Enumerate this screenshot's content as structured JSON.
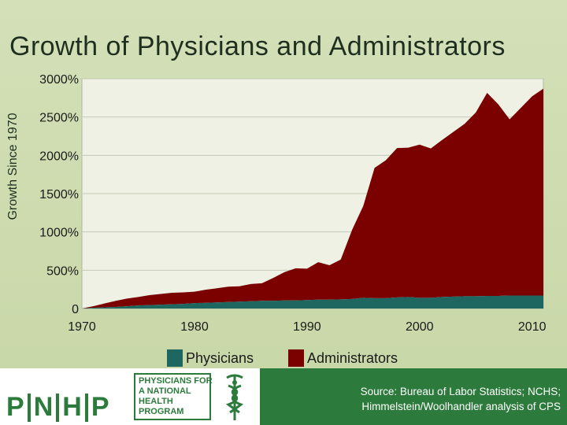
{
  "title": "Growth of Physicians and Administrators",
  "chart_data": {
    "type": "area",
    "title": "Growth of Physicians and Administrators",
    "xlabel": "",
    "ylabel": "Growth Since 1970",
    "xlim": [
      1970,
      2011
    ],
    "ylim": [
      0,
      3000
    ],
    "x_ticks": [
      "1970",
      "1980",
      "1990",
      "2000",
      "2010"
    ],
    "y_ticks": [
      "0",
      "500%",
      "1000%",
      "1500%",
      "2000%",
      "2500%",
      "3000%"
    ],
    "stacked": true,
    "x": [
      1970,
      1971,
      1972,
      1973,
      1974,
      1975,
      1976,
      1977,
      1978,
      1979,
      1980,
      1981,
      1982,
      1983,
      1984,
      1985,
      1986,
      1987,
      1988,
      1989,
      1990,
      1991,
      1992,
      1993,
      1994,
      1995,
      1996,
      1997,
      1998,
      1999,
      2000,
      2001,
      2002,
      2003,
      2004,
      2005,
      2006,
      2007,
      2008,
      2009,
      2010,
      2011
    ],
    "series": [
      {
        "name": "Physicians",
        "color": "#1e6660",
        "values": [
          0,
          10,
          15,
          20,
          30,
          40,
          45,
          50,
          55,
          60,
          70,
          75,
          80,
          85,
          90,
          95,
          100,
          100,
          105,
          105,
          110,
          115,
          115,
          120,
          125,
          140,
          135,
          135,
          145,
          150,
          140,
          140,
          150,
          155,
          160,
          160,
          165,
          165,
          170,
          170,
          170,
          170
        ]
      },
      {
        "name": "Administrators",
        "color": "#7b0000",
        "values": [
          0,
          20,
          50,
          80,
          100,
          110,
          130,
          140,
          150,
          150,
          150,
          170,
          185,
          200,
          200,
          225,
          230,
          300,
          370,
          420,
          410,
          490,
          450,
          520,
          900,
          1200,
          1700,
          1800,
          1950,
          1950,
          2000,
          1950,
          2050,
          2150,
          2250,
          2400,
          2650,
          2500,
          2300,
          2450,
          2600,
          2700
        ]
      }
    ],
    "legend_position": "bottom"
  },
  "legend": {
    "physicians": "Physicians",
    "administrators": "Administrators"
  },
  "footer": {
    "logo_letters": [
      "P",
      "N",
      "H",
      "P"
    ],
    "logo_lines": [
      "PHYSICIANS FOR",
      "A NATIONAL",
      "HEALTH",
      "PROGRAM"
    ],
    "source_line1": "Source: Bureau of Labor Statistics; NCHS;",
    "source_line2": "Himmelstein/Woolhandler analysis of CPS",
    "bg_color": "#2d7b3c"
  },
  "colors": {
    "plot_bg": "#eef1e3",
    "physicians": "#1e6660",
    "administrators": "#7b0000"
  }
}
